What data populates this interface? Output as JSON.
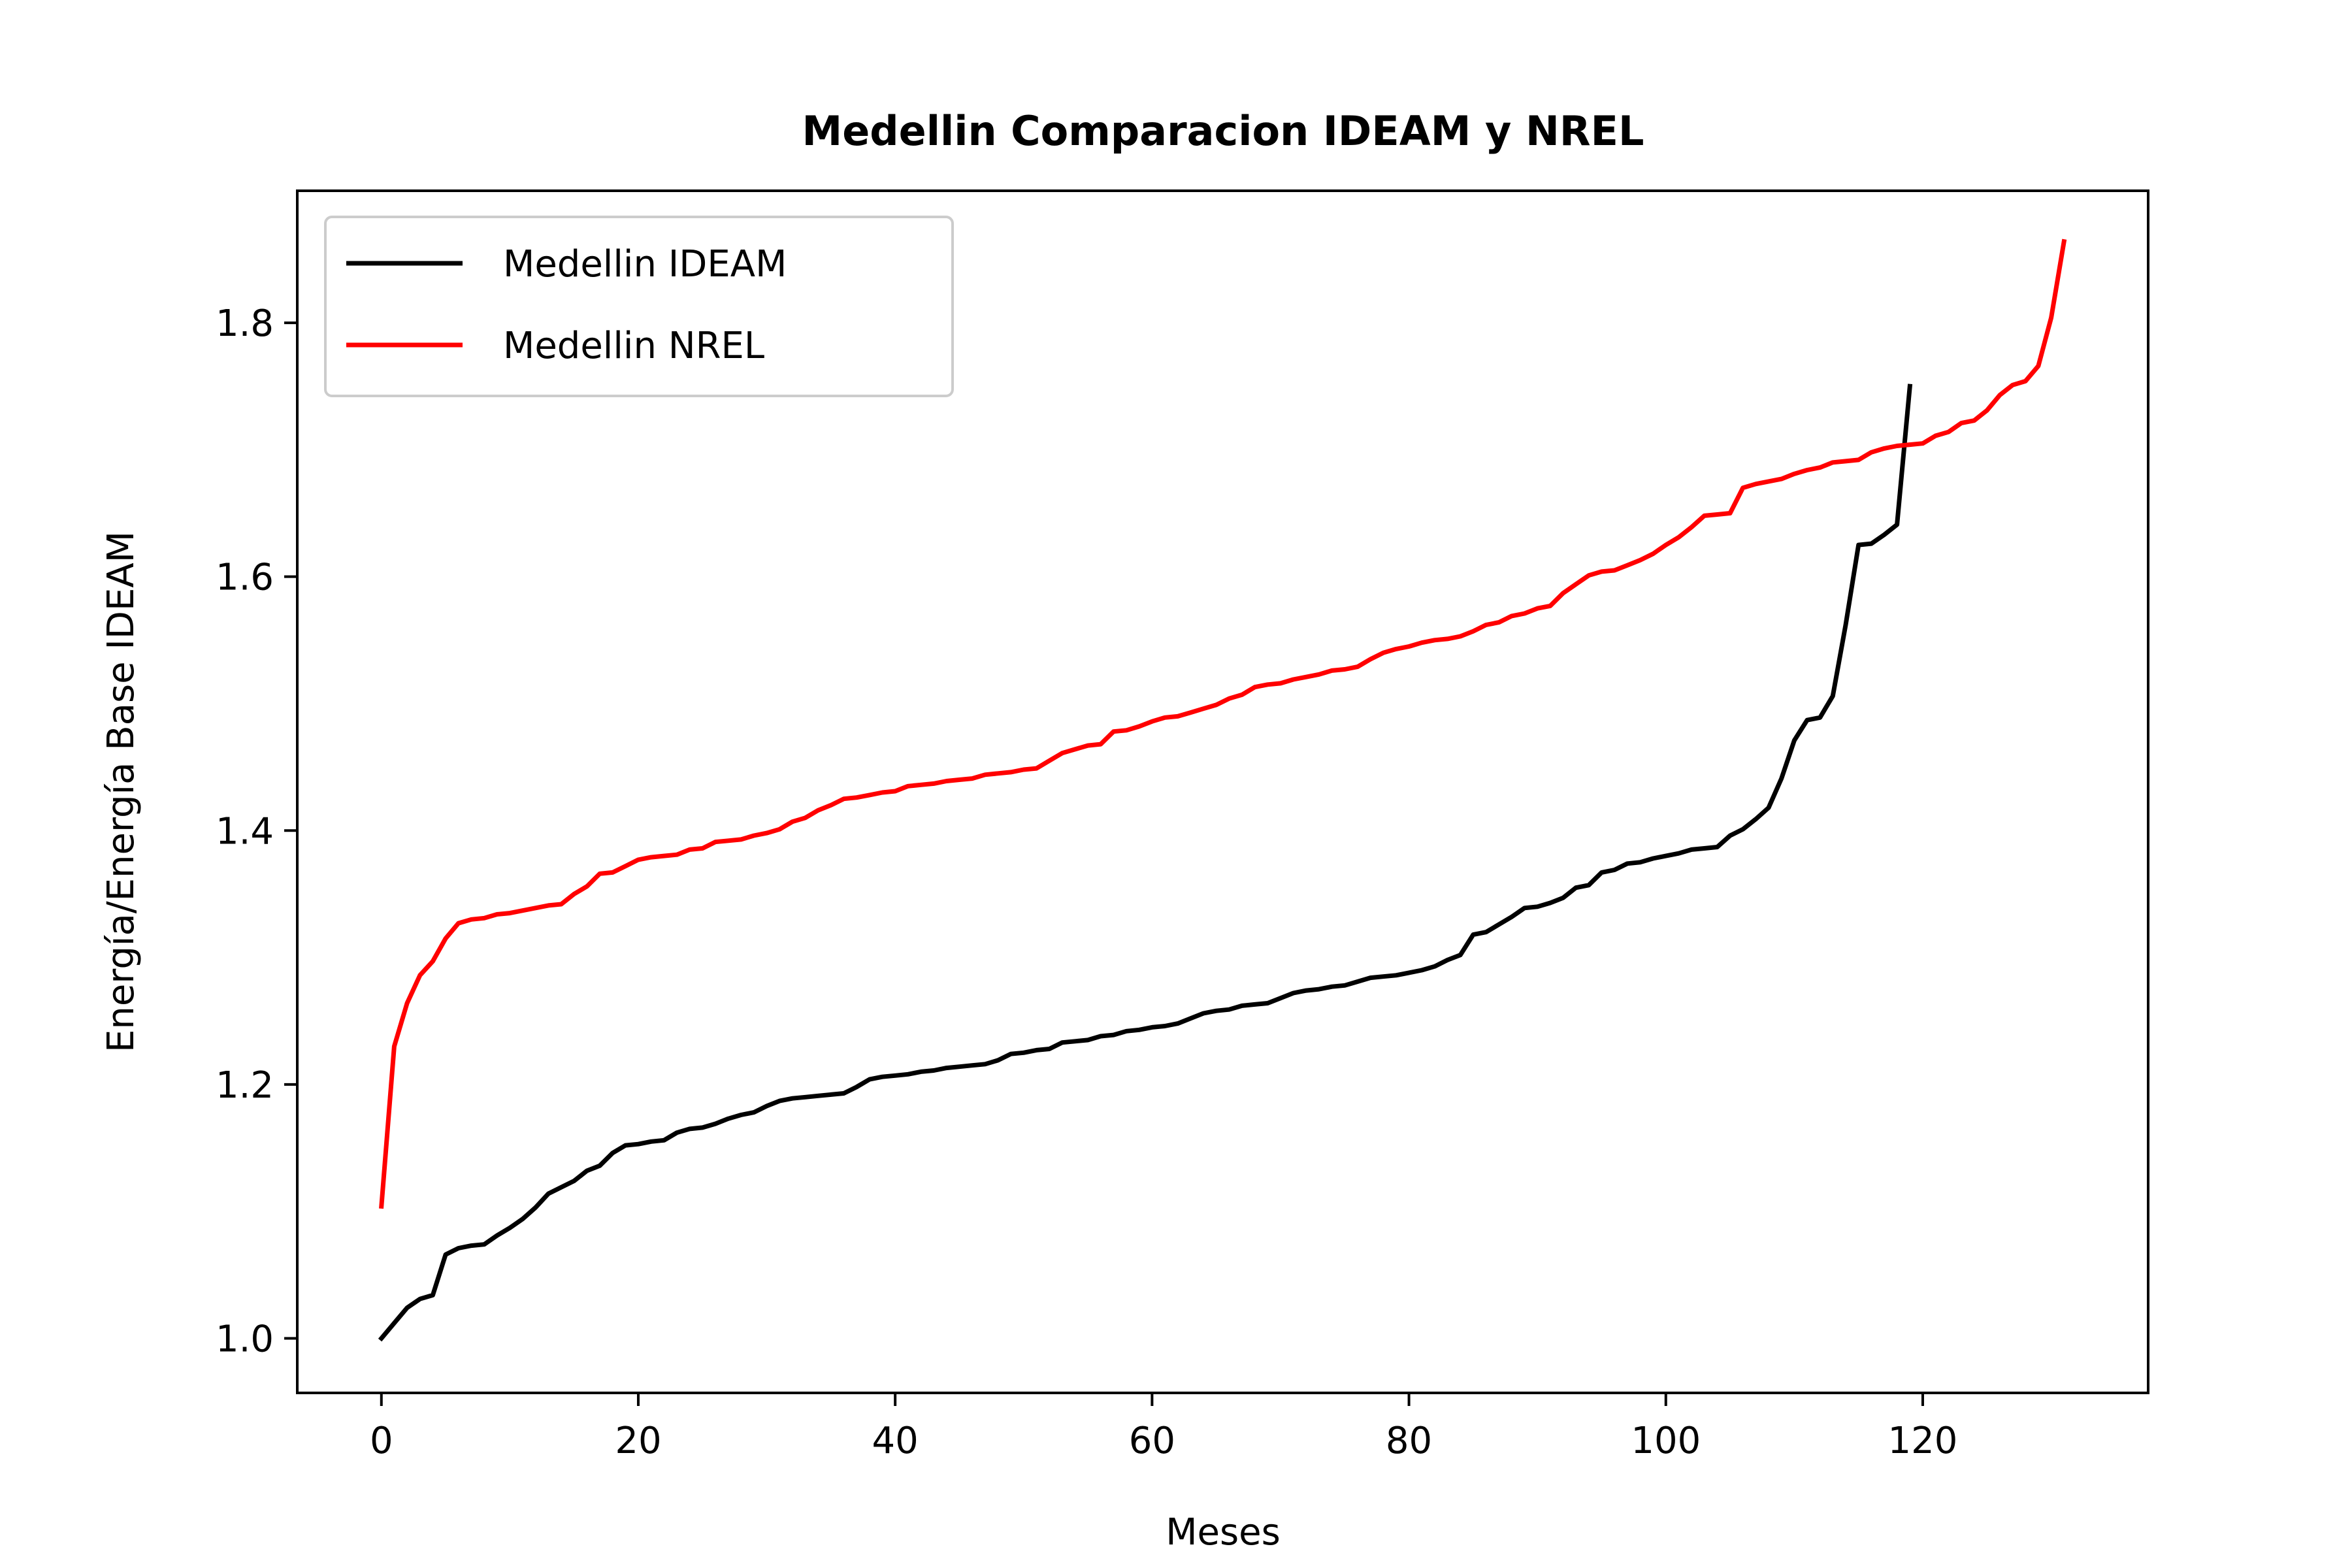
{
  "chart_data": {
    "type": "line",
    "title": "Medellin Comparacion IDEAM y NREL",
    "xlabel": "Meses",
    "ylabel": "Energía/Energía Base IDEAM",
    "xlim": [
      -6.55,
      137.55
    ],
    "ylim": [
      0.957,
      1.904
    ],
    "xticks": [
      0,
      20,
      40,
      60,
      80,
      100,
      120
    ],
    "xtick_labels": [
      "0",
      "20",
      "40",
      "60",
      "80",
      "100",
      "120"
    ],
    "yticks": [
      1.0,
      1.2,
      1.4,
      1.6,
      1.8
    ],
    "ytick_labels": [
      "1.0",
      "1.2",
      "1.4",
      "1.6",
      "1.8"
    ],
    "grid": false,
    "legend_position": "upper-left",
    "series": [
      {
        "name": "Medellin IDEAM",
        "color": "#000000",
        "x": [
          0,
          1,
          2,
          3,
          4,
          5,
          6,
          7,
          8,
          9,
          10,
          11,
          12,
          13,
          14,
          15,
          16,
          17,
          18,
          19,
          20,
          21,
          22,
          23,
          24,
          25,
          26,
          27,
          28,
          29,
          30,
          31,
          32,
          33,
          34,
          35,
          36,
          37,
          38,
          39,
          40,
          41,
          42,
          43,
          44,
          45,
          46,
          47,
          48,
          49,
          50,
          51,
          52,
          53,
          54,
          55,
          56,
          57,
          58,
          59,
          60,
          61,
          62,
          63,
          64,
          65,
          66,
          67,
          68,
          69,
          70,
          71,
          72,
          73,
          74,
          75,
          76,
          77,
          78,
          79,
          80,
          81,
          82,
          83,
          84,
          85,
          86,
          87,
          88,
          89,
          90,
          91,
          92,
          93,
          94,
          95,
          96,
          97,
          98,
          99,
          100,
          101,
          102,
          103,
          104,
          105,
          106,
          107,
          108,
          109,
          110,
          111,
          112,
          113,
          114,
          115,
          116,
          117,
          118,
          119
        ],
        "values": [
          1.0,
          1.012,
          1.024,
          1.031,
          1.034,
          1.066,
          1.071,
          1.073,
          1.074,
          1.081,
          1.087,
          1.094,
          1.103,
          1.114,
          1.119,
          1.124,
          1.132,
          1.136,
          1.146,
          1.152,
          1.153,
          1.155,
          1.156,
          1.162,
          1.165,
          1.166,
          1.169,
          1.173,
          1.176,
          1.178,
          1.183,
          1.187,
          1.189,
          1.19,
          1.191,
          1.192,
          1.193,
          1.198,
          1.204,
          1.206,
          1.207,
          1.208,
          1.21,
          1.211,
          1.213,
          1.214,
          1.215,
          1.216,
          1.219,
          1.224,
          1.225,
          1.227,
          1.228,
          1.233,
          1.234,
          1.235,
          1.238,
          1.239,
          1.242,
          1.243,
          1.245,
          1.246,
          1.248,
          1.252,
          1.256,
          1.258,
          1.259,
          1.262,
          1.263,
          1.264,
          1.268,
          1.272,
          1.274,
          1.275,
          1.277,
          1.278,
          1.281,
          1.284,
          1.285,
          1.286,
          1.288,
          1.29,
          1.293,
          1.298,
          1.302,
          1.318,
          1.32,
          1.326,
          1.332,
          1.339,
          1.34,
          1.343,
          1.347,
          1.355,
          1.357,
          1.367,
          1.369,
          1.374,
          1.375,
          1.378,
          1.38,
          1.382,
          1.385,
          1.386,
          1.387,
          1.396,
          1.401,
          1.409,
          1.418,
          1.441,
          1.471,
          1.487,
          1.489,
          1.506,
          1.562,
          1.625,
          1.626,
          1.633,
          1.641,
          1.75
        ]
      },
      {
        "name": "Medellin NREL",
        "color": "#ff0000",
        "x": [
          0,
          1,
          2,
          3,
          4,
          5,
          6,
          7,
          8,
          9,
          10,
          11,
          12,
          13,
          14,
          15,
          16,
          17,
          18,
          19,
          20,
          21,
          22,
          23,
          24,
          25,
          26,
          27,
          28,
          29,
          30,
          31,
          32,
          33,
          34,
          35,
          36,
          37,
          38,
          39,
          40,
          41,
          42,
          43,
          44,
          45,
          46,
          47,
          48,
          49,
          50,
          51,
          52,
          53,
          54,
          55,
          56,
          57,
          58,
          59,
          60,
          61,
          62,
          63,
          64,
          65,
          66,
          67,
          68,
          69,
          70,
          71,
          72,
          73,
          74,
          75,
          76,
          77,
          78,
          79,
          80,
          81,
          82,
          83,
          84,
          85,
          86,
          87,
          88,
          89,
          90,
          91,
          92,
          93,
          94,
          95,
          96,
          97,
          98,
          99,
          100,
          101,
          102,
          103,
          104,
          105,
          106,
          107,
          108,
          109,
          110,
          111,
          112,
          113,
          114,
          115,
          116,
          117,
          118,
          119,
          120,
          121,
          122,
          123,
          124,
          125,
          126,
          127,
          128,
          129,
          130,
          131
        ],
        "values": [
          1.104,
          1.23,
          1.264,
          1.286,
          1.297,
          1.315,
          1.327,
          1.33,
          1.331,
          1.334,
          1.335,
          1.337,
          1.339,
          1.341,
          1.342,
          1.35,
          1.356,
          1.366,
          1.367,
          1.372,
          1.377,
          1.379,
          1.38,
          1.381,
          1.385,
          1.386,
          1.391,
          1.392,
          1.393,
          1.396,
          1.398,
          1.401,
          1.407,
          1.41,
          1.416,
          1.42,
          1.425,
          1.426,
          1.428,
          1.43,
          1.431,
          1.435,
          1.436,
          1.437,
          1.439,
          1.44,
          1.441,
          1.444,
          1.445,
          1.446,
          1.448,
          1.449,
          1.455,
          1.461,
          1.464,
          1.467,
          1.468,
          1.478,
          1.479,
          1.482,
          1.486,
          1.489,
          1.49,
          1.493,
          1.496,
          1.499,
          1.504,
          1.507,
          1.513,
          1.515,
          1.516,
          1.519,
          1.521,
          1.523,
          1.526,
          1.527,
          1.529,
          1.535,
          1.54,
          1.543,
          1.545,
          1.548,
          1.55,
          1.551,
          1.553,
          1.557,
          1.562,
          1.564,
          1.569,
          1.571,
          1.575,
          1.577,
          1.587,
          1.594,
          1.601,
          1.604,
          1.605,
          1.609,
          1.613,
          1.618,
          1.625,
          1.631,
          1.639,
          1.648,
          1.649,
          1.65,
          1.67,
          1.673,
          1.675,
          1.677,
          1.681,
          1.684,
          1.686,
          1.69,
          1.691,
          1.692,
          1.698,
          1.701,
          1.703,
          1.704,
          1.705,
          1.711,
          1.714,
          1.721,
          1.723,
          1.731,
          1.743,
          1.751,
          1.754,
          1.766,
          1.804,
          1.864
        ]
      }
    ]
  }
}
